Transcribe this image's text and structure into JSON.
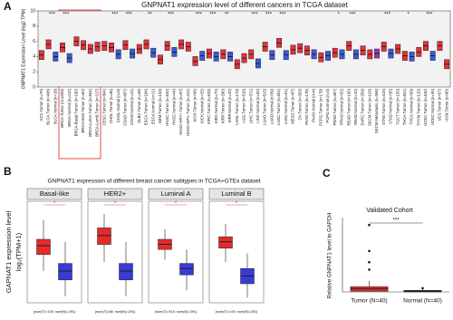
{
  "chart_data": [
    {
      "type": "box",
      "panel": "A",
      "title": "GNPNAT1 expression  level of different cancers in TCGA dataset",
      "ylabel": "GNPNAT1 Expression Level (log2 TPM)",
      "ylim": [
        0,
        10
      ],
      "yticks": [
        0,
        2,
        4,
        6,
        8,
        10
      ],
      "categories": [
        "ACC.Tumor (n=79)",
        "BLCA.Tumor (n=408)",
        "BLCA.Normal (n=19)",
        "BRCA.Tumor (n=1093)",
        "BRCA.Normal (n=112)",
        "BRCA-Basal.Tumor (n=190)",
        "BRCA-Her2.Tumor (n=82)",
        "BRCA-LumA.Tumor (n=564)",
        "BRCA-LumB.Tumor (n=217)",
        "CESC.Tumor (n=304)",
        "CHOL.Tumor (n=36)",
        "CHOL.Normal (n=9)",
        "COAD.Tumor (n=457)",
        "COAD.Normal (n=41)",
        "DLBC.Tumor (n=48)",
        "ESCA.Tumor (n=184)",
        "ESCA.Normal (n=11)",
        "GBM.Tumor (n=153)",
        "HNSC.Tumor (n=520)",
        "HNSC.Normal (n=44)",
        "HNSC-HPV+.Tumor (n=97)",
        "HNSC-HPV-.Tumor (n=421)",
        "KICH.Tumor (n=66)",
        "KICH.Normal (n=25)",
        "KIRC.Tumor (n=533)",
        "KIRC.Normal (n=72)",
        "KIRP.Tumor (n=290)",
        "KIRP.Normal (n=32)",
        "LAML.Tumor (n=173)",
        "LGG.Tumor (n=516)",
        "LIHC.Tumor (n=371)",
        "LIHC.Normal (n=50)",
        "LUAD.Tumor (n=515)",
        "LUAD.Normal (n=59)",
        "LUSC.Tumor (n=501)",
        "LUSC.Normal (n=51)",
        "MESO.Tumor (n=87)",
        "OV.Tumor (n=303)",
        "PAAD.Tumor (n=178)",
        "PAAD.Normal (n=4)",
        "PCPG.Tumor (n=179)",
        "PCPG.Normal (n=3)",
        "PRAD.Tumor (n=497)",
        "PRAD.Normal (n=52)",
        "READ.Tumor (n=166)",
        "READ.Normal (n=10)",
        "SARC.Tumor (n=259)",
        "SKCM.Tumor (n=103)",
        "SKCM.Metastasis (n=368)",
        "STAD.Tumor (n=415)",
        "STAD.Normal (n=35)",
        "TGCT.Tumor (n=150)",
        "THCA.Tumor (n=501)",
        "THCA.Normal (n=59)",
        "THYM.Tumor (n=120)",
        "UCEC.Tumor (n=545)",
        "UCEC.Normal (n=35)",
        "UCS.Tumor (n=57)",
        "UVM.Tumor (n=80)"
      ],
      "colors": [
        "#e8313a",
        "#e8313a",
        "#3b5bdb",
        "#e8313a",
        "#3b5bdb",
        "#e8313a",
        "#e8313a",
        "#e8313a",
        "#e8313a",
        "#e8313a",
        "#e8313a",
        "#3b5bdb",
        "#e8313a",
        "#3b5bdb",
        "#e8313a",
        "#e8313a",
        "#3b5bdb",
        "#e8313a",
        "#e8313a",
        "#3b5bdb",
        "#e8313a",
        "#e8313a",
        "#e8313a",
        "#3b5bdb",
        "#e8313a",
        "#3b5bdb",
        "#e8313a",
        "#3b5bdb",
        "#e8313a",
        "#e8313a",
        "#e8313a",
        "#3b5bdb",
        "#e8313a",
        "#3b5bdb",
        "#e8313a",
        "#3b5bdb",
        "#e8313a",
        "#e8313a",
        "#e8313a",
        "#3b5bdb",
        "#e8313a",
        "#3b5bdb",
        "#e8313a",
        "#3b5bdb",
        "#e8313a",
        "#3b5bdb",
        "#e8313a",
        "#e8313a",
        "#9c36b5",
        "#e8313a",
        "#3b5bdb",
        "#e8313a",
        "#e8313a",
        "#3b5bdb",
        "#e8313a",
        "#e8313a",
        "#3b5bdb",
        "#e8313a",
        "#e8313a"
      ],
      "median": [
        4.2,
        5.6,
        4.0,
        5.2,
        3.8,
        6.0,
        5.5,
        5.0,
        5.3,
        5.4,
        5.2,
        4.3,
        5.5,
        4.4,
        5.0,
        5.6,
        4.5,
        3.6,
        5.4,
        4.6,
        5.6,
        5.3,
        3.4,
        4.1,
        4.4,
        4.0,
        4.3,
        4.0,
        3.0,
        3.8,
        4.3,
        3.1,
        5.3,
        4.2,
        5.8,
        4.2,
        4.9,
        5.1,
        4.8,
        4.3,
        3.9,
        4.1,
        4.5,
        4.3,
        5.4,
        4.3,
        4.8,
        4.3,
        4.4,
        5.3,
        4.4,
        5.0,
        4.1,
        4.0,
        4.6,
        5.4,
        4.1,
        5.4,
        3.0
      ],
      "q1": [
        3.6,
        5.0,
        3.4,
        4.6,
        3.2,
        5.4,
        4.9,
        4.4,
        4.7,
        4.8,
        4.6,
        3.7,
        4.9,
        3.8,
        4.4,
        5.0,
        3.9,
        3.0,
        4.8,
        4.0,
        5.0,
        4.7,
        2.8,
        3.5,
        3.8,
        3.4,
        3.7,
        3.4,
        2.4,
        3.2,
        3.7,
        2.5,
        4.7,
        3.6,
        5.2,
        3.6,
        4.3,
        4.5,
        4.2,
        3.7,
        3.3,
        3.5,
        3.9,
        3.7,
        4.8,
        3.7,
        4.2,
        3.7,
        3.8,
        4.7,
        3.8,
        4.4,
        3.5,
        3.4,
        4.0,
        4.8,
        3.5,
        4.8,
        2.4
      ],
      "q3": [
        4.8,
        6.2,
        4.6,
        5.8,
        4.4,
        6.6,
        6.1,
        5.6,
        5.9,
        6.0,
        5.8,
        4.9,
        6.1,
        5.0,
        5.6,
        6.2,
        5.1,
        4.2,
        6.0,
        5.2,
        6.2,
        5.9,
        4.0,
        4.7,
        5.0,
        4.6,
        4.9,
        4.6,
        3.6,
        4.4,
        4.9,
        3.7,
        5.9,
        4.8,
        6.4,
        4.8,
        5.5,
        5.7,
        5.4,
        4.9,
        4.5,
        4.7,
        5.1,
        4.9,
        6.0,
        4.9,
        5.4,
        4.9,
        5.0,
        5.9,
        5.0,
        5.6,
        4.7,
        4.6,
        5.2,
        6.0,
        4.7,
        6.0,
        3.6
      ],
      "significance": [
        null,
        "***",
        null,
        "***",
        null,
        null,
        null,
        null,
        null,
        null,
        "***",
        null,
        "***",
        null,
        null,
        "**",
        null,
        null,
        "***",
        null,
        null,
        null,
        "***",
        null,
        "***",
        null,
        "**",
        null,
        null,
        null,
        "***",
        null,
        "***",
        null,
        "***",
        null,
        null,
        null,
        null,
        null,
        null,
        null,
        "*",
        null,
        "***",
        null,
        null,
        null,
        null,
        "***",
        null,
        null,
        "*",
        null,
        null,
        "***",
        null,
        null,
        null
      ]
    },
    {
      "type": "box-panels",
      "panel": "B",
      "title": "GNPNAT1 expression of different breast cancer subtypes in TCGA+GTEx dataset",
      "ylabel": "GAPNAT1 expression level",
      "ylabel2": "log₂(TPM+1)",
      "ylim": [
        0,
        8
      ],
      "colors": [
        "#e32b2b",
        "#3a3ad6"
      ],
      "subplots": [
        {
          "title": "Basal-like",
          "note": "(num(T)=135; num(N)=291)",
          "significance": "*",
          "lower": [
            2.5,
            0.5
          ],
          "q1": [
            3.8,
            1.8
          ],
          "median": [
            4.5,
            2.5
          ],
          "q3": [
            5.0,
            3.1
          ],
          "upper": [
            6.5,
            4.8
          ]
        },
        {
          "title": "HER2+",
          "note": "(num(T)=66; num(N)=291)",
          "significance": "*",
          "lower": [
            3.2,
            0.5
          ],
          "q1": [
            4.6,
            1.8
          ],
          "median": [
            5.3,
            2.5
          ],
          "q3": [
            5.9,
            3.1
          ],
          "upper": [
            7.0,
            4.8
          ]
        },
        {
          "title": "Luminal A",
          "note": "(num(T)=415; num(N)=291)",
          "significance": "*",
          "lower": [
            3.4,
            1.0
          ],
          "q1": [
            4.2,
            2.2
          ],
          "median": [
            4.6,
            2.7
          ],
          "q3": [
            5.0,
            3.1
          ],
          "upper": [
            5.8,
            4.2
          ]
        },
        {
          "title": "Luminal B",
          "note": "(num(T)=194; num(N)=291)",
          "significance": "*",
          "lower": [
            3.2,
            0.4
          ],
          "q1": [
            4.3,
            1.5
          ],
          "median": [
            4.8,
            2.1
          ],
          "q3": [
            5.2,
            2.7
          ],
          "upper": [
            6.2,
            3.9
          ]
        }
      ]
    },
    {
      "type": "box",
      "panel": "C",
      "title": "Validated Cohort",
      "ylabel": "Relative GNPNAT1 level to GAPDH",
      "ylim": [
        0,
        1
      ],
      "categories": [
        "Tumor (N=40)",
        "Normal (N=40)"
      ],
      "colors": [
        "#e32b2b",
        "#1f2a7a"
      ],
      "lower": [
        0,
        0
      ],
      "q1": [
        0.01,
        0.0
      ],
      "median": [
        0.04,
        0.01
      ],
      "q3": [
        0.07,
        0.02
      ],
      "upper": [
        0.15,
        0.04
      ],
      "outliers": [
        [
          0.3,
          0.4,
          0.55,
          0.9
        ],
        [
          0.05
        ]
      ],
      "significance": "***"
    }
  ]
}
